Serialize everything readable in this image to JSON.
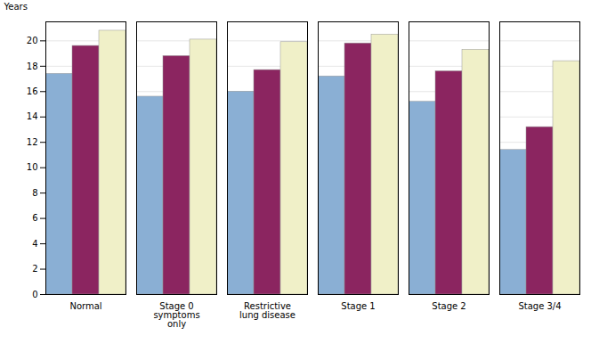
{
  "chart_data": {
    "type": "bar",
    "categories": [
      "Normal",
      "Stage 0\nsymptoms\nonly",
      "Restrictive\nlung disease",
      "Stage 1",
      "Stage 2",
      "Stage 3/4"
    ],
    "series": [
      {
        "color": "#8aafd4",
        "values": [
          17.4,
          15.6,
          16.0,
          17.2,
          15.2,
          11.4
        ]
      },
      {
        "color": "#8b2560",
        "values": [
          19.6,
          18.8,
          17.7,
          19.8,
          17.6,
          13.2
        ]
      },
      {
        "color": "#f0f0c8",
        "values": [
          20.8,
          20.1,
          19.9,
          20.5,
          19.3,
          18.4
        ]
      }
    ],
    "ylabel": "Years",
    "ylim": [
      0,
      21.5
    ],
    "yticks": [
      0,
      2,
      4,
      6,
      8,
      10,
      12,
      14,
      16,
      18,
      20
    ],
    "grid": true
  }
}
